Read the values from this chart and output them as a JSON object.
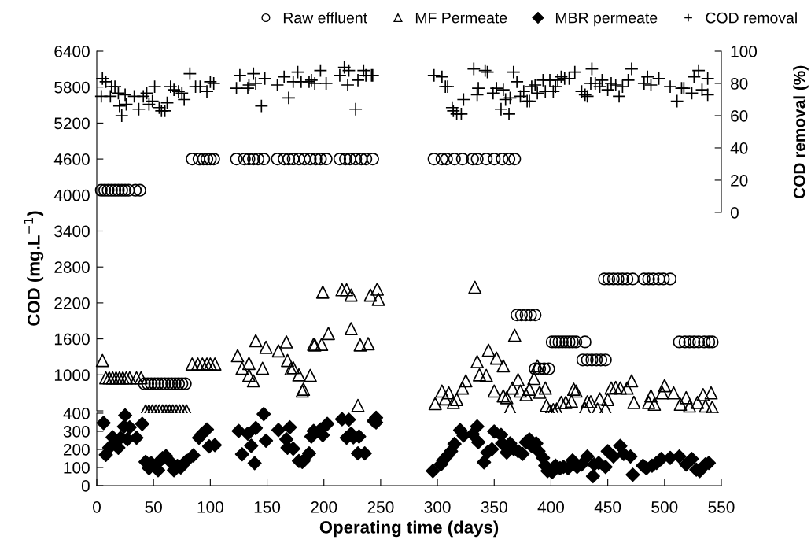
{
  "chart_data": [
    {
      "type": "scatter",
      "ylabel": "COD (mg.L$^{−1}$)",
      "y2label": "COD removal (%)",
      "xlim": [
        0,
        550
      ],
      "ylim": [
        400,
        6400
      ],
      "yticks": [
        {
          "value": 400,
          "label": null
        },
        1000,
        1600,
        2200,
        2800,
        3400,
        4000,
        4600,
        5200,
        5800,
        6400
      ],
      "y2lim": [
        -123,
        100
      ],
      "y2ticks": [
        0,
        20,
        40,
        60,
        80,
        100
      ],
      "tick_labels": "y",
      "grid": false,
      "legend": "top right",
      "series": [
        {
          "name": "Raw effluent",
          "color": "#000000",
          "marker": "circle",
          "x": [
            4,
            7,
            10,
            13,
            16,
            19,
            22,
            25,
            28,
            34,
            38,
            42,
            45,
            48,
            51,
            54,
            57,
            60,
            63,
            66,
            69,
            72,
            75,
            78,
            84,
            90,
            94,
            97,
            100,
            103,
            123,
            130,
            134,
            138,
            142,
            147,
            159,
            165,
            169,
            173,
            178,
            183,
            188,
            193,
            197,
            202,
            214,
            219,
            223,
            228,
            233,
            237,
            243,
            297,
            304,
            308,
            315,
            322,
            331,
            335,
            343,
            350,
            357,
            363,
            368,
            386,
            390,
            394,
            398,
            370,
            374,
            378,
            382,
            386,
            401,
            404,
            407,
            410,
            413,
            416,
            419,
            422,
            430,
            428,
            432,
            436,
            440,
            444,
            448,
            447,
            451,
            455,
            459,
            463,
            467,
            472,
            482,
            486,
            490,
            495,
            499,
            505,
            513,
            518,
            522,
            526,
            530,
            535,
            539,
            542
          ],
          "values": [
            4080,
            4080,
            4080,
            4080,
            4080,
            4080,
            4080,
            4080,
            4080,
            4080,
            4080,
            850,
            850,
            850,
            850,
            850,
            850,
            850,
            850,
            850,
            850,
            850,
            850,
            850,
            4600,
            4600,
            4600,
            4600,
            4600,
            4600,
            4600,
            4600,
            4600,
            4600,
            4600,
            4600,
            4600,
            4600,
            4600,
            4600,
            4600,
            4600,
            4600,
            4600,
            4600,
            4600,
            4600,
            4600,
            4600,
            4600,
            4600,
            4600,
            4600,
            4600,
            4600,
            4600,
            4600,
            4600,
            4600,
            4600,
            4600,
            4600,
            4600,
            4600,
            4600,
            1100,
            1100,
            1100,
            1100,
            2000,
            2000,
            2000,
            2000,
            2000,
            1550,
            1550,
            1550,
            1550,
            1550,
            1550,
            1550,
            1550,
            1550,
            1250,
            1250,
            1250,
            1250,
            1250,
            1250,
            2600,
            2600,
            2600,
            2600,
            2600,
            2600,
            2600,
            2600,
            2600,
            2600,
            2600,
            2600,
            2600,
            1550,
            1550,
            1550,
            1550,
            1550,
            1550,
            1550,
            1550
          ]
        },
        {
          "name": "MF Permeate",
          "color": "#000000",
          "marker": "triangle",
          "x": [
            5,
            8,
            11,
            14,
            17,
            20,
            23,
            26,
            29,
            35,
            39,
            43,
            46,
            49,
            52,
            55,
            58,
            61,
            64,
            67,
            70,
            73,
            76,
            79,
            84,
            89,
            93,
            97,
            100,
            104,
            124,
            128,
            134,
            134,
            138,
            140,
            146,
            149,
            160,
            167,
            168,
            171,
            173,
            178,
            181,
            182,
            188,
            191,
            192,
            198,
            199,
            204,
            216,
            220,
            224,
            224,
            232,
            230,
            239,
            241,
            247,
            248,
            298,
            304,
            307,
            310,
            314,
            317,
            322,
            325,
            333,
            335,
            337,
            343,
            345,
            352,
            350,
            358,
            358,
            361,
            364,
            366,
            368,
            371,
            373,
            378,
            381,
            385,
            388,
            390,
            395,
            396,
            399,
            402,
            405,
            409,
            413,
            418,
            420,
            422,
            430,
            432,
            435,
            441,
            443,
            448,
            450,
            453,
            457,
            461,
            467,
            471,
            473,
            486,
            488,
            491,
            498,
            500,
            508,
            514,
            519,
            522,
            529,
            534,
            536,
            541,
            542
          ],
          "values": [
            1240,
            950,
            950,
            950,
            950,
            950,
            950,
            950,
            950,
            950,
            950,
            400,
            400,
            400,
            400,
            400,
            400,
            400,
            400,
            400,
            400,
            400,
            400,
            400,
            1180,
            1180,
            1180,
            1180,
            1180,
            1180,
            1320,
            1110,
            1190,
            990,
            900,
            1570,
            1110,
            1460,
            1400,
            1550,
            1240,
            1100,
            1120,
            1000,
            730,
            760,
            990,
            1510,
            1500,
            1510,
            2380,
            1690,
            2420,
            2420,
            2330,
            1770,
            1500,
            490,
            1520,
            2330,
            2430,
            2260,
            520,
            730,
            600,
            700,
            540,
            590,
            780,
            900,
            2460,
            1220,
            1000,
            990,
            1410,
            1280,
            730,
            1150,
            650,
            620,
            440,
            780,
            1660,
            920,
            730,
            670,
            760,
            940,
            1150,
            710,
            780,
            490,
            400,
            420,
            430,
            540,
            540,
            560,
            760,
            730,
            440,
            550,
            550,
            430,
            600,
            440,
            590,
            780,
            790,
            780,
            780,
            900,
            540,
            540,
            650,
            510,
            700,
            820,
            700,
            510,
            620,
            480,
            540,
            670,
            480,
            700,
            460
          ]
        },
        {
          "name": "COD removal",
          "color": "#000000",
          "marker": "cross",
          "axis": "y2",
          "x": [
            4,
            5,
            8,
            12,
            13,
            16,
            19,
            20,
            22,
            25,
            26,
            33,
            37,
            41,
            44,
            46,
            51,
            49,
            55,
            57,
            60,
            62,
            65,
            68,
            72,
            75,
            77,
            82,
            87,
            91,
            97,
            100,
            103,
            123,
            126,
            133,
            134,
            138,
            140,
            145,
            148,
            159,
            165,
            169,
            173,
            177,
            180,
            187,
            189,
            192,
            197,
            202,
            214,
            218,
            222,
            221,
            228,
            230,
            235,
            237,
            242,
            243,
            297,
            304,
            307,
            309,
            313,
            314,
            317,
            321,
            323,
            332,
            335,
            336,
            342,
            344,
            349,
            352,
            356,
            358,
            360,
            363,
            364,
            367,
            370,
            373,
            376,
            379,
            381,
            383,
            386,
            388,
            393,
            395,
            399,
            402,
            404,
            406,
            409,
            412,
            416,
            421,
            427,
            430,
            432,
            436,
            435,
            439,
            443,
            445,
            450,
            453,
            457,
            460,
            463,
            468,
            471,
            482,
            485,
            488,
            495,
            505,
            511,
            515,
            517,
            524,
            526,
            530,
            533,
            538,
            538
          ],
          "values": [
            72,
            83,
            81,
            72,
            78,
            78,
            74,
            66,
            60,
            73,
            67,
            72,
            64,
            72,
            74,
            67,
            78,
            69,
            65,
            63,
            63,
            68,
            78,
            76,
            75,
            74,
            70,
            86,
            78,
            78,
            75,
            81,
            80,
            77,
            85,
            77,
            79,
            86,
            80,
            66,
            83,
            79,
            84,
            71,
            81,
            87,
            81,
            81,
            82,
            80,
            88,
            80,
            85,
            90,
            88,
            79,
            64,
            82,
            88,
            85,
            85,
            85,
            85,
            84,
            78,
            78,
            65,
            63,
            61,
            61,
            70,
            89,
            73,
            77,
            88,
            87,
            74,
            77,
            64,
            76,
            70,
            61,
            71,
            87,
            81,
            72,
            75,
            69,
            69,
            78,
            79,
            74,
            82,
            75,
            82,
            75,
            78,
            82,
            84,
            83,
            83,
            87,
            75,
            73,
            72,
            89,
            80,
            80,
            78,
            82,
            76,
            80,
            79,
            72,
            78,
            82,
            89,
            80,
            84,
            79,
            83,
            78,
            69,
            77,
            77,
            74,
            84,
            88,
            76,
            83,
            73
          ]
        }
      ]
    },
    {
      "type": "scatter",
      "xlabel": "Operating time (days)",
      "xlim": [
        0,
        550
      ],
      "xticks": [
        0,
        50,
        100,
        150,
        200,
        250,
        300,
        350,
        400,
        450,
        500,
        550
      ],
      "ylim": [
        0,
        400
      ],
      "yticks": [
        0,
        100,
        200,
        300,
        400
      ],
      "grid": false,
      "series": [
        {
          "name": "MBR permeate",
          "color": "#000000",
          "marker": "diamond",
          "x": [
            6,
            8,
            11,
            14,
            16,
            19,
            21,
            24,
            25,
            27,
            29,
            35,
            40,
            43,
            46,
            48,
            54,
            56,
            58,
            61,
            66,
            68,
            71,
            74,
            77,
            79,
            85,
            90,
            93,
            97,
            99,
            104,
            125,
            128,
            133,
            136,
            139,
            140,
            147,
            149,
            160,
            167,
            170,
            168,
            173,
            178,
            181,
            182,
            187,
            189,
            191,
            197,
            199,
            203,
            216,
            222,
            220,
            224,
            226,
            231,
            230,
            236,
            244,
            246,
            246,
            296,
            303,
            305,
            308,
            312,
            315,
            320,
            323,
            331,
            335,
            336,
            341,
            344,
            348,
            350,
            356,
            357,
            361,
            364,
            367,
            371,
            375,
            378,
            381,
            383,
            387,
            389,
            393,
            395,
            397,
            401,
            404,
            408,
            411,
            415,
            419,
            423,
            427,
            432,
            437,
            438,
            442,
            448,
            450,
            455,
            461,
            464,
            470,
            472,
            481,
            484,
            489,
            493,
            497,
            505,
            513,
            519,
            524,
            528,
            531,
            536,
            539
          ],
          "values": [
            346,
            170,
            209,
            267,
            240,
            209,
            264,
            326,
            388,
            256,
            322,
            264,
            341,
            131,
            96,
            124,
            85,
            139,
            152,
            163,
            124,
            85,
            108,
            100,
            124,
            136,
            167,
            264,
            287,
            310,
            217,
            224,
            302,
            173,
            287,
            220,
            124,
            318,
            395,
            248,
            307,
            256,
            322,
            209,
            204,
            136,
            131,
            136,
            178,
            271,
            302,
            310,
            279,
            341,
            367,
            364,
            264,
            287,
            267,
            271,
            178,
            178,
            357,
            375,
            349,
            81,
            117,
            139,
            161,
            190,
            230,
            306,
            277,
            284,
            327,
            240,
            129,
            183,
            201,
            299,
            280,
            233,
            183,
            233,
            204,
            190,
            175,
            240,
            255,
            219,
            233,
            190,
            153,
            110,
            81,
            74,
            110,
            96,
            103,
            96,
            139,
            103,
            117,
            161,
            52,
            117,
            125,
            103,
            190,
            161,
            219,
            175,
            161,
            60,
            110,
            96,
            110,
            125,
            147,
            153,
            161,
            117,
            147,
            88,
            81,
            117,
            125
          ]
        }
      ]
    }
  ]
}
